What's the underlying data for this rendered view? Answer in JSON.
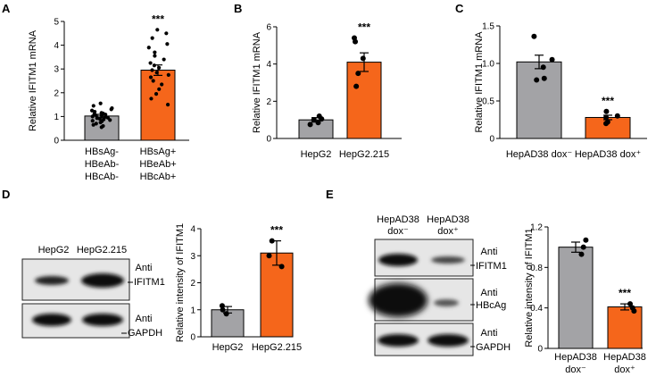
{
  "colors": {
    "gray": "#a3a3a6",
    "orange": "#f5661b",
    "blot_bg": "#e7e7e7",
    "band": "#151515"
  },
  "panels": {
    "A": {
      "label": "A"
    },
    "B": {
      "label": "B"
    },
    "C": {
      "label": "C"
    },
    "D": {
      "label": "D"
    },
    "E": {
      "label": "E"
    }
  },
  "chart_data": [
    {
      "panel": "A",
      "type": "bar",
      "ylabel": "Relative IFITM1 mRNA",
      "ylim": [
        0,
        5
      ],
      "yticks": [
        "0",
        "1",
        "2",
        "3",
        "4",
        "5"
      ],
      "categories": [
        {
          "lines": [
            "HBsAg-",
            "HBeAb-",
            "HBcAb-"
          ]
        },
        {
          "lines": [
            "HBsAg+",
            "HBeAb+",
            "HBcAb+"
          ]
        }
      ],
      "values": [
        1.02,
        2.95
      ],
      "errors": [
        0.07,
        0.22
      ],
      "significance": [
        "",
        "***"
      ],
      "points": [
        [
          0.55,
          0.6,
          0.65,
          0.7,
          0.75,
          0.8,
          0.82,
          0.85,
          0.88,
          0.9,
          0.93,
          0.95,
          0.98,
          1.0,
          1.03,
          1.05,
          1.08,
          1.1,
          1.13,
          1.15,
          1.2,
          1.25,
          1.3,
          1.35,
          1.45,
          1.55
        ],
        [
          1.5,
          1.75,
          1.95,
          2.15,
          2.35,
          2.5,
          2.65,
          2.75,
          2.85,
          2.95,
          3.05,
          3.15,
          3.25,
          3.4,
          3.55,
          3.7,
          3.9,
          4.05,
          4.3,
          4.5,
          4.65
        ]
      ]
    },
    {
      "panel": "B",
      "type": "bar",
      "ylabel": "Relative IFITM1 mRNA",
      "ylim": [
        0,
        6
      ],
      "yticks": [
        "0",
        "2",
        "4",
        "6"
      ],
      "categories": [
        {
          "lines": [
            "HepG2"
          ]
        },
        {
          "lines": [
            "HepG2.215"
          ]
        }
      ],
      "values": [
        1.0,
        4.1
      ],
      "errors": [
        0.12,
        0.5
      ],
      "significance": [
        "",
        "***"
      ],
      "points": [
        [
          0.75,
          0.85,
          1.0,
          1.05,
          1.2
        ],
        [
          2.8,
          3.5,
          4.3,
          5.2,
          5.4
        ]
      ]
    },
    {
      "panel": "C",
      "type": "bar",
      "ylabel": "Relative IFITM1 mRNA",
      "ylim": [
        0,
        1.5
      ],
      "yticks": [
        "0",
        "0.5",
        "1.0",
        "1.5"
      ],
      "categories": [
        {
          "lines": [
            "HepAD38 dox⁻"
          ]
        },
        {
          "lines": [
            "HepAD38 dox⁺"
          ]
        }
      ],
      "values": [
        1.02,
        0.28
      ],
      "errors": [
        0.09,
        0.03
      ],
      "significance": [
        "",
        "***"
      ],
      "points": [
        [
          0.78,
          0.8,
          0.95,
          1.05,
          1.36
        ],
        [
          0.2,
          0.22,
          0.28,
          0.3,
          0.36
        ]
      ]
    },
    {
      "panel": "D",
      "type": "bar",
      "ylabel": "Relative intensity of IFITM1",
      "ylim": [
        0,
        4
      ],
      "yticks": [
        "0",
        "1",
        "2",
        "3",
        "4"
      ],
      "categories": [
        {
          "lines": [
            "HepG2"
          ]
        },
        {
          "lines": [
            "HepG2.215"
          ]
        }
      ],
      "values": [
        1.0,
        3.1
      ],
      "errors": [
        0.12,
        0.45
      ],
      "significance": [
        "",
        "***"
      ],
      "points": [
        [
          0.85,
          1.0,
          1.15
        ],
        [
          2.6,
          3.0,
          3.55
        ]
      ]
    },
    {
      "panel": "E",
      "type": "bar",
      "ylabel": "Relative intensity of IFITM1",
      "ylim": [
        0,
        1.2
      ],
      "yticks": [
        "0",
        "0.4",
        "0.8",
        "1.2"
      ],
      "categories": [
        {
          "lines": [
            "HepAD38",
            "dox⁻"
          ]
        },
        {
          "lines": [
            "HepAD38",
            "dox⁺"
          ]
        }
      ],
      "values": [
        1.0,
        0.41
      ],
      "errors": [
        0.05,
        0.03
      ],
      "significance": [
        "",
        "***"
      ],
      "points": [
        [
          0.93,
          1.0,
          1.07
        ],
        [
          0.37,
          0.4,
          0.44
        ]
      ]
    }
  ],
  "blots": {
    "D": {
      "lanes": [
        "HepG2",
        "HepG2.215"
      ],
      "rows": [
        {
          "label_lines": [
            "Anti",
            "IFITM1"
          ]
        },
        {
          "label_lines": [
            "Anti",
            "GAPDH"
          ]
        }
      ]
    },
    "E": {
      "lanes": [
        {
          "lines": [
            "HepAD38",
            "dox⁻"
          ]
        },
        {
          "lines": [
            "HepAD38",
            "dox⁺"
          ]
        }
      ],
      "rows": [
        {
          "label_lines": [
            "Anti",
            "IFITM1"
          ]
        },
        {
          "label_lines": [
            "Anti",
            "HBcAg"
          ]
        },
        {
          "label_lines": [
            "Anti",
            "GAPDH"
          ]
        }
      ]
    }
  }
}
